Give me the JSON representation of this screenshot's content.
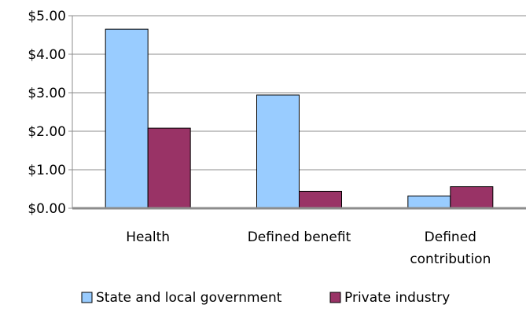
{
  "chart_data": {
    "type": "bar",
    "categories": [
      "Health",
      "Defined benefit",
      "Defined contribution"
    ],
    "category_lines": [
      [
        "Health"
      ],
      [
        "Defined benefit"
      ],
      [
        "Defined",
        "contribution"
      ]
    ],
    "series": [
      {
        "name": "State and local government",
        "values": [
          4.65,
          2.94,
          0.32
        ],
        "color": "#99ccff"
      },
      {
        "name": "Private industry",
        "values": [
          2.08,
          0.44,
          0.56
        ],
        "color": "#993366"
      }
    ],
    "ylim": [
      0,
      5
    ],
    "yticks": [
      0,
      1,
      2,
      3,
      4,
      5
    ],
    "ytick_labels": [
      "$0.00",
      "$1.00",
      "$2.00",
      "$3.00",
      "$4.00",
      "$5.00"
    ],
    "grid": true,
    "legend_position": "bottom",
    "title": "",
    "xlabel": "",
    "ylabel": ""
  }
}
